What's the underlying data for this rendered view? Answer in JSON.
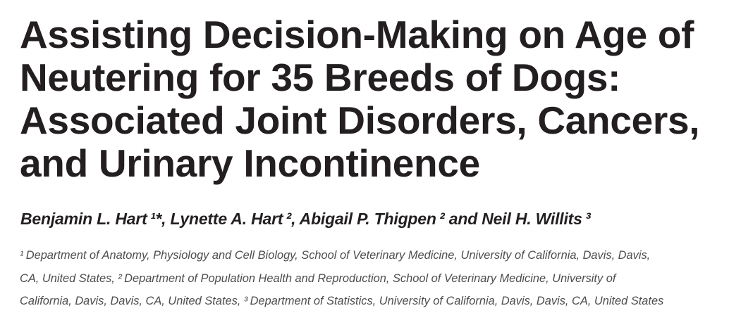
{
  "article": {
    "title_lines": [
      "Assisting Decision-Making on Age of",
      "Neutering for 35 Breeds of Dogs:",
      "Associated Joint Disorders, Cancers,",
      "and Urinary Incontinence"
    ],
    "authors": "Benjamin L. Hart ¹*, Lynette A. Hart ², Abigail P. Thigpen ² and Neil H. Willits ³",
    "affiliation_lines": [
      "¹ Department of Anatomy, Physiology and Cell Biology, School of Veterinary Medicine, University of California, Davis, Davis,",
      "CA, United States, ² Department of Population Health and Reproduction, School of Veterinary Medicine, University of",
      "California, Davis, Davis, CA, United States, ³ Department of Statistics, University of California, Davis, Davis, CA, United States"
    ],
    "colors": {
      "title_text": "#231f20",
      "authors_text": "#231f20",
      "affiliations_text": "#4d4d4d",
      "background": "#ffffff"
    }
  }
}
